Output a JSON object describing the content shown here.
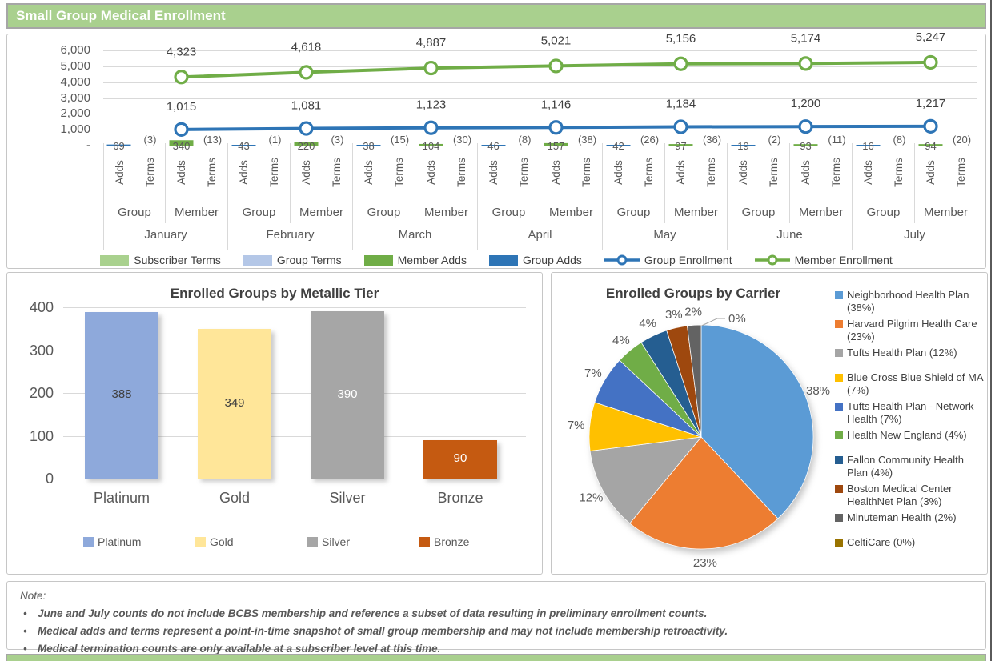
{
  "header": {
    "title": "Small Group Medical Enrollment",
    "bg_color": "#a9d08e"
  },
  "chart_data": [
    {
      "id": "enrollment_combo",
      "type": "combo-bar-line",
      "y_axis": {
        "labels": [
          "6,000",
          "5,000",
          "4,000",
          "3,000",
          "2,000",
          "1,000",
          "-"
        ],
        "values": [
          6000,
          5000,
          4000,
          3000,
          2000,
          1000,
          0
        ],
        "max": 6000
      },
      "categories": [
        "January",
        "February",
        "March",
        "April",
        "May",
        "June",
        "July"
      ],
      "sub_axis": {
        "slot_labels": [
          "Adds",
          "Terms"
        ],
        "group_labels": [
          "Group",
          "Member"
        ]
      },
      "bar_series": [
        {
          "name": "Group Adds",
          "color": "#2e75b6",
          "slot": 0,
          "values": [
            69,
            43,
            38,
            46,
            42,
            19,
            16
          ],
          "labels": [
            "69",
            "43",
            "38",
            "46",
            "42",
            "19",
            "16"
          ]
        },
        {
          "name": "Group Terms",
          "color": "#b4c7e7",
          "slot": 1,
          "values": [
            -3,
            -1,
            -15,
            -8,
            -26,
            -2,
            -8
          ],
          "labels": [
            "(3)",
            "(1)",
            "(15)",
            "(8)",
            "(26)",
            "(2)",
            "(8)"
          ]
        },
        {
          "name": "Member Adds",
          "color": "#70ad47",
          "slot": 2,
          "values": [
            340,
            220,
            104,
            157,
            97,
            93,
            94
          ],
          "labels": [
            "340",
            "220",
            "104",
            "157",
            "97",
            "93",
            "94"
          ]
        },
        {
          "name": "Subscriber Terms",
          "color": "#a9d18e",
          "slot": 3,
          "values": [
            -13,
            -3,
            -30,
            -38,
            -36,
            -11,
            -20
          ],
          "labels": [
            "(13)",
            "(3)",
            "(30)",
            "(38)",
            "(36)",
            "(11)",
            "(20)"
          ]
        }
      ],
      "line_series": [
        {
          "name": "Group Enrollment",
          "color": "#2e75b6",
          "values": [
            1015,
            1081,
            1123,
            1146,
            1184,
            1200,
            1217
          ],
          "labels": [
            "1,015",
            "1,081",
            "1,123",
            "1,146",
            "1,184",
            "1,200",
            "1,217"
          ]
        },
        {
          "name": "Member Enrollment",
          "color": "#70ad47",
          "values": [
            4323,
            4618,
            4887,
            5021,
            5156,
            5174,
            5247
          ],
          "labels": [
            "4,323",
            "4,618",
            "4,887",
            "5,021",
            "5,156",
            "5,174",
            "5,247"
          ]
        }
      ],
      "legend": [
        {
          "label": "Subscriber Terms",
          "glyph": "swatch",
          "color": "#a9d18e"
        },
        {
          "label": "Group Terms",
          "glyph": "swatch",
          "color": "#b4c7e7"
        },
        {
          "label": "Member Adds",
          "glyph": "swatch",
          "color": "#70ad47"
        },
        {
          "label": "Group Adds",
          "glyph": "swatch",
          "color": "#2e75b6"
        },
        {
          "label": "Group Enrollment",
          "glyph": "line",
          "color": "#2e75b6"
        },
        {
          "label": "Member Enrollment",
          "glyph": "line",
          "color": "#70ad47"
        }
      ]
    },
    {
      "id": "metallic_tier",
      "type": "bar",
      "title": "Enrolled Groups by Metallic Tier",
      "categories": [
        "Platinum",
        "Gold",
        "Silver",
        "Bronze"
      ],
      "values": [
        388,
        349,
        390,
        90
      ],
      "value_labels": [
        "388",
        "349",
        "390",
        "90"
      ],
      "colors": [
        "#8ea9db",
        "#ffe699",
        "#a6a6a6",
        "#c55a11"
      ],
      "value_label_colors": [
        "#404040",
        "#404040",
        "#ffffff",
        "#ffffff"
      ],
      "ylim": [
        0,
        400
      ],
      "y_axis": {
        "labels": [
          "400",
          "300",
          "200",
          "100",
          "0"
        ],
        "values": [
          400,
          300,
          200,
          100,
          0
        ]
      },
      "legend": [
        {
          "label": "Platinum",
          "color": "#8ea9db"
        },
        {
          "label": "Gold",
          "color": "#ffe699"
        },
        {
          "label": "Silver",
          "color": "#a6a6a6"
        },
        {
          "label": "Bronze",
          "color": "#c55a11"
        }
      ]
    },
    {
      "id": "carrier_pie",
      "type": "pie",
      "title": "Enrolled Groups by Carrier",
      "slices": [
        {
          "name": "Neighborhood Health Plan",
          "pct": 38,
          "label": "38%",
          "color": "#5b9bd5",
          "legend_label": "Neighborhood Health Plan (38%)",
          "legend_group": 0
        },
        {
          "name": "Harvard Pilgrim Health Care",
          "pct": 23,
          "label": "23%",
          "color": "#ed7d31",
          "legend_label": "Harvard Pilgrim Health Care (23%)",
          "legend_group": 0
        },
        {
          "name": "Tufts Health Plan",
          "pct": 12,
          "label": "12%",
          "color": "#a5a5a5",
          "legend_label": "Tufts Health Plan (12%)",
          "legend_group": 0
        },
        {
          "name": "Blue Cross Blue Shield of MA",
          "pct": 7,
          "label": "7%",
          "color": "#ffc000",
          "legend_label": "Blue Cross Blue Shield of MA (7%)",
          "legend_group": 1
        },
        {
          "name": "Tufts Health Plan - Network Health",
          "pct": 7,
          "label": "7%",
          "color": "#4472c4",
          "legend_label": "Tufts Health Plan - Network Health (7%)",
          "legend_group": 1
        },
        {
          "name": "Health New England",
          "pct": 4,
          "label": "4%",
          "color": "#70ad47",
          "legend_label": "Health New England (4%)",
          "legend_group": 1
        },
        {
          "name": "Fallon Community Health Plan",
          "pct": 4,
          "label": "4%",
          "color": "#255e91",
          "legend_label": "Fallon Community Health Plan (4%)",
          "legend_group": 2
        },
        {
          "name": "Boston Medical Center HealthNet Plan",
          "pct": 3,
          "label": "3%",
          "color": "#9e480e",
          "legend_label": "Boston Medical Center HealthNet Plan (3%)",
          "legend_group": 2
        },
        {
          "name": "Minuteman Health",
          "pct": 2,
          "label": "2%",
          "color": "#636363",
          "legend_label": "Minuteman Health (2%)",
          "legend_group": 2
        },
        {
          "name": "CeltiCare",
          "pct": 0,
          "label": "0%",
          "color": "#997300",
          "legend_label": "CeltiCare (0%)",
          "legend_group": 3
        }
      ]
    }
  ],
  "notes": {
    "label": "Note:",
    "items": [
      "June and July counts do not include BCBS membership and reference a subset of data resulting in preliminary enrollment counts.",
      "Medical adds and terms represent a point-in-time snapshot of small group membership and may not include membership retroactivity.",
      "Medical termination counts are only available at a subscriber level at this time."
    ]
  }
}
